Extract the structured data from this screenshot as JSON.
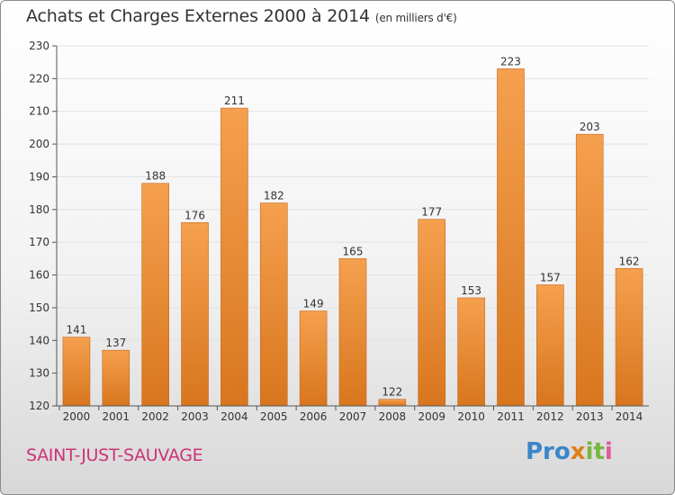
{
  "title": "Achats et Charges Externes 2000 à 2014",
  "unit": "(en milliers d'€)",
  "city": "SAINT-JUST-SAUVAGE",
  "logo": {
    "text": "Proxiti",
    "parts": [
      "Pro",
      "x",
      "it",
      "i"
    ],
    "colors": [
      "#3a86c8",
      "#e07f1a",
      "#7ab640",
      "#e05a9c"
    ]
  },
  "colors": {
    "bar_top": "#f5a04e",
    "bar_bottom": "#d8761e",
    "axis": "#555555",
    "grid": "#e2e2e2"
  },
  "chart_data": {
    "type": "bar",
    "categories": [
      "2000",
      "2001",
      "2002",
      "2003",
      "2004",
      "2005",
      "2006",
      "2007",
      "2008",
      "2009",
      "2010",
      "2011",
      "2012",
      "2013",
      "2014"
    ],
    "values": [
      141,
      137,
      188,
      176,
      211,
      182,
      149,
      165,
      122,
      177,
      153,
      223,
      157,
      203,
      162
    ],
    "ylim": [
      120,
      230
    ],
    "yticks": [
      120,
      130,
      140,
      150,
      160,
      170,
      180,
      190,
      200,
      210,
      220,
      230
    ],
    "grid": true,
    "data_labels": true
  }
}
